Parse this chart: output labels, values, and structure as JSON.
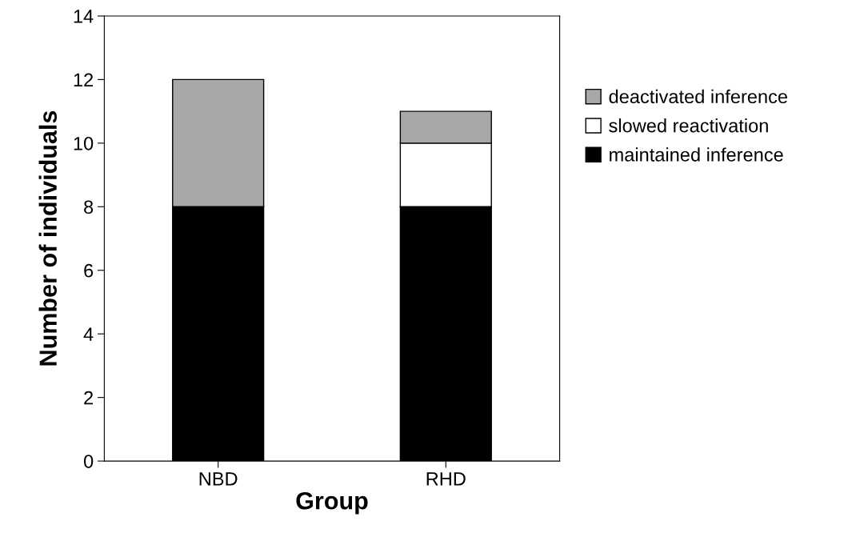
{
  "chart_data": {
    "type": "bar",
    "stacked": true,
    "xlabel": "Group",
    "ylabel": "Number of individuals",
    "categories": [
      "NBD",
      "RHD"
    ],
    "series": [
      {
        "name": "maintained inference",
        "color": "#000000",
        "values": [
          8,
          8
        ]
      },
      {
        "name": "slowed reactivation",
        "color": "#ffffff",
        "values": [
          0,
          2
        ]
      },
      {
        "name": "deactivated inference",
        "color": "#a8a8a8",
        "values": [
          4,
          1
        ]
      }
    ],
    "ylim": [
      0,
      14
    ],
    "yticks": [
      0,
      2,
      4,
      6,
      8,
      10,
      12,
      14
    ],
    "legend": "right"
  }
}
